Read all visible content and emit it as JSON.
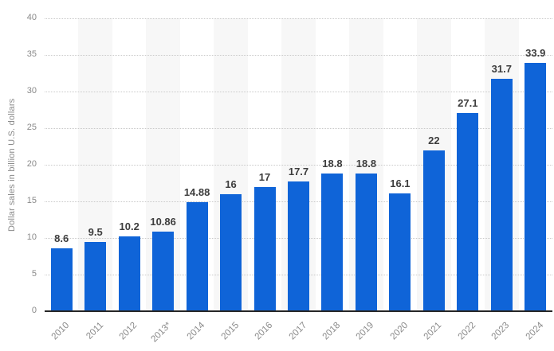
{
  "chart_data": {
    "type": "bar",
    "categories": [
      "2010",
      "2011",
      "2012",
      "2013*",
      "2014",
      "2015",
      "2016",
      "2017",
      "2018",
      "2019",
      "2020",
      "2021",
      "2022",
      "2023",
      "2024"
    ],
    "values": [
      8.6,
      9.5,
      10.2,
      10.86,
      14.88,
      16,
      17,
      17.7,
      18.8,
      18.8,
      16.1,
      22,
      27.1,
      31.7,
      33.9
    ],
    "value_labels": [
      "8.6",
      "9.5",
      "10.2",
      "10.86",
      "14.88",
      "16",
      "17",
      "17.7",
      "18.8",
      "18.8",
      "16.1",
      "22",
      "27.1",
      "31.7",
      "33.9"
    ],
    "title": "",
    "xlabel": "",
    "ylabel": "Dollar sales in billion U.S. dollars",
    "ylim": [
      0,
      40
    ],
    "yticks": [
      0,
      5,
      10,
      15,
      20,
      25,
      30,
      35,
      40
    ],
    "grid": "horizontal-dotted",
    "legend_position": "none",
    "band_pattern": "alternating columns shaded, odd indices",
    "colors": {
      "bar": "#0f64d8",
      "column_band": "#f7f7f7",
      "gridline": "#c9c9c9",
      "axis_line": "#262626",
      "tick_label": "#8a8a8a",
      "value_label": "#3d3d3d",
      "background": "#ffffff"
    }
  }
}
